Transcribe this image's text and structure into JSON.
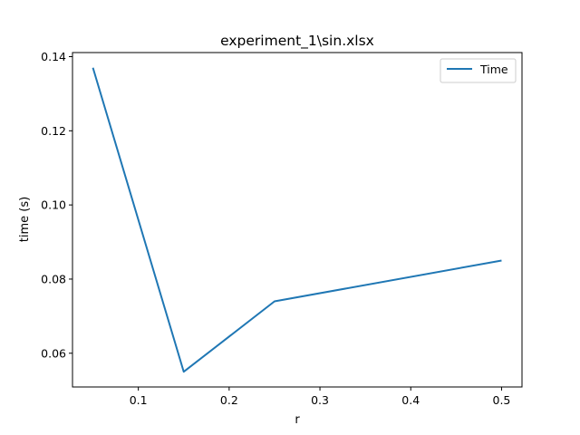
{
  "chart_data": {
    "type": "line",
    "title": "experiment_1\\sin.xlsx",
    "xlabel": "r",
    "ylabel": "time (s)",
    "xlim": [
      0.0275,
      0.5225
    ],
    "ylim": [
      0.0509,
      0.1411
    ],
    "xticks": [
      0.1,
      0.2,
      0.3,
      0.4,
      0.5
    ],
    "xtick_labels": [
      "0.1",
      "0.2",
      "0.3",
      "0.4",
      "0.5"
    ],
    "yticks": [
      0.06,
      0.08,
      0.1,
      0.12,
      0.14
    ],
    "ytick_labels": [
      "0.06",
      "0.08",
      "0.10",
      "0.12",
      "0.14"
    ],
    "grid": false,
    "legend_position": "top-right",
    "series": [
      {
        "name": "Time",
        "color": "#1f77b4",
        "x": [
          0.05,
          0.15,
          0.25,
          0.5
        ],
        "y": [
          0.137,
          0.055,
          0.074,
          0.085
        ]
      }
    ]
  }
}
